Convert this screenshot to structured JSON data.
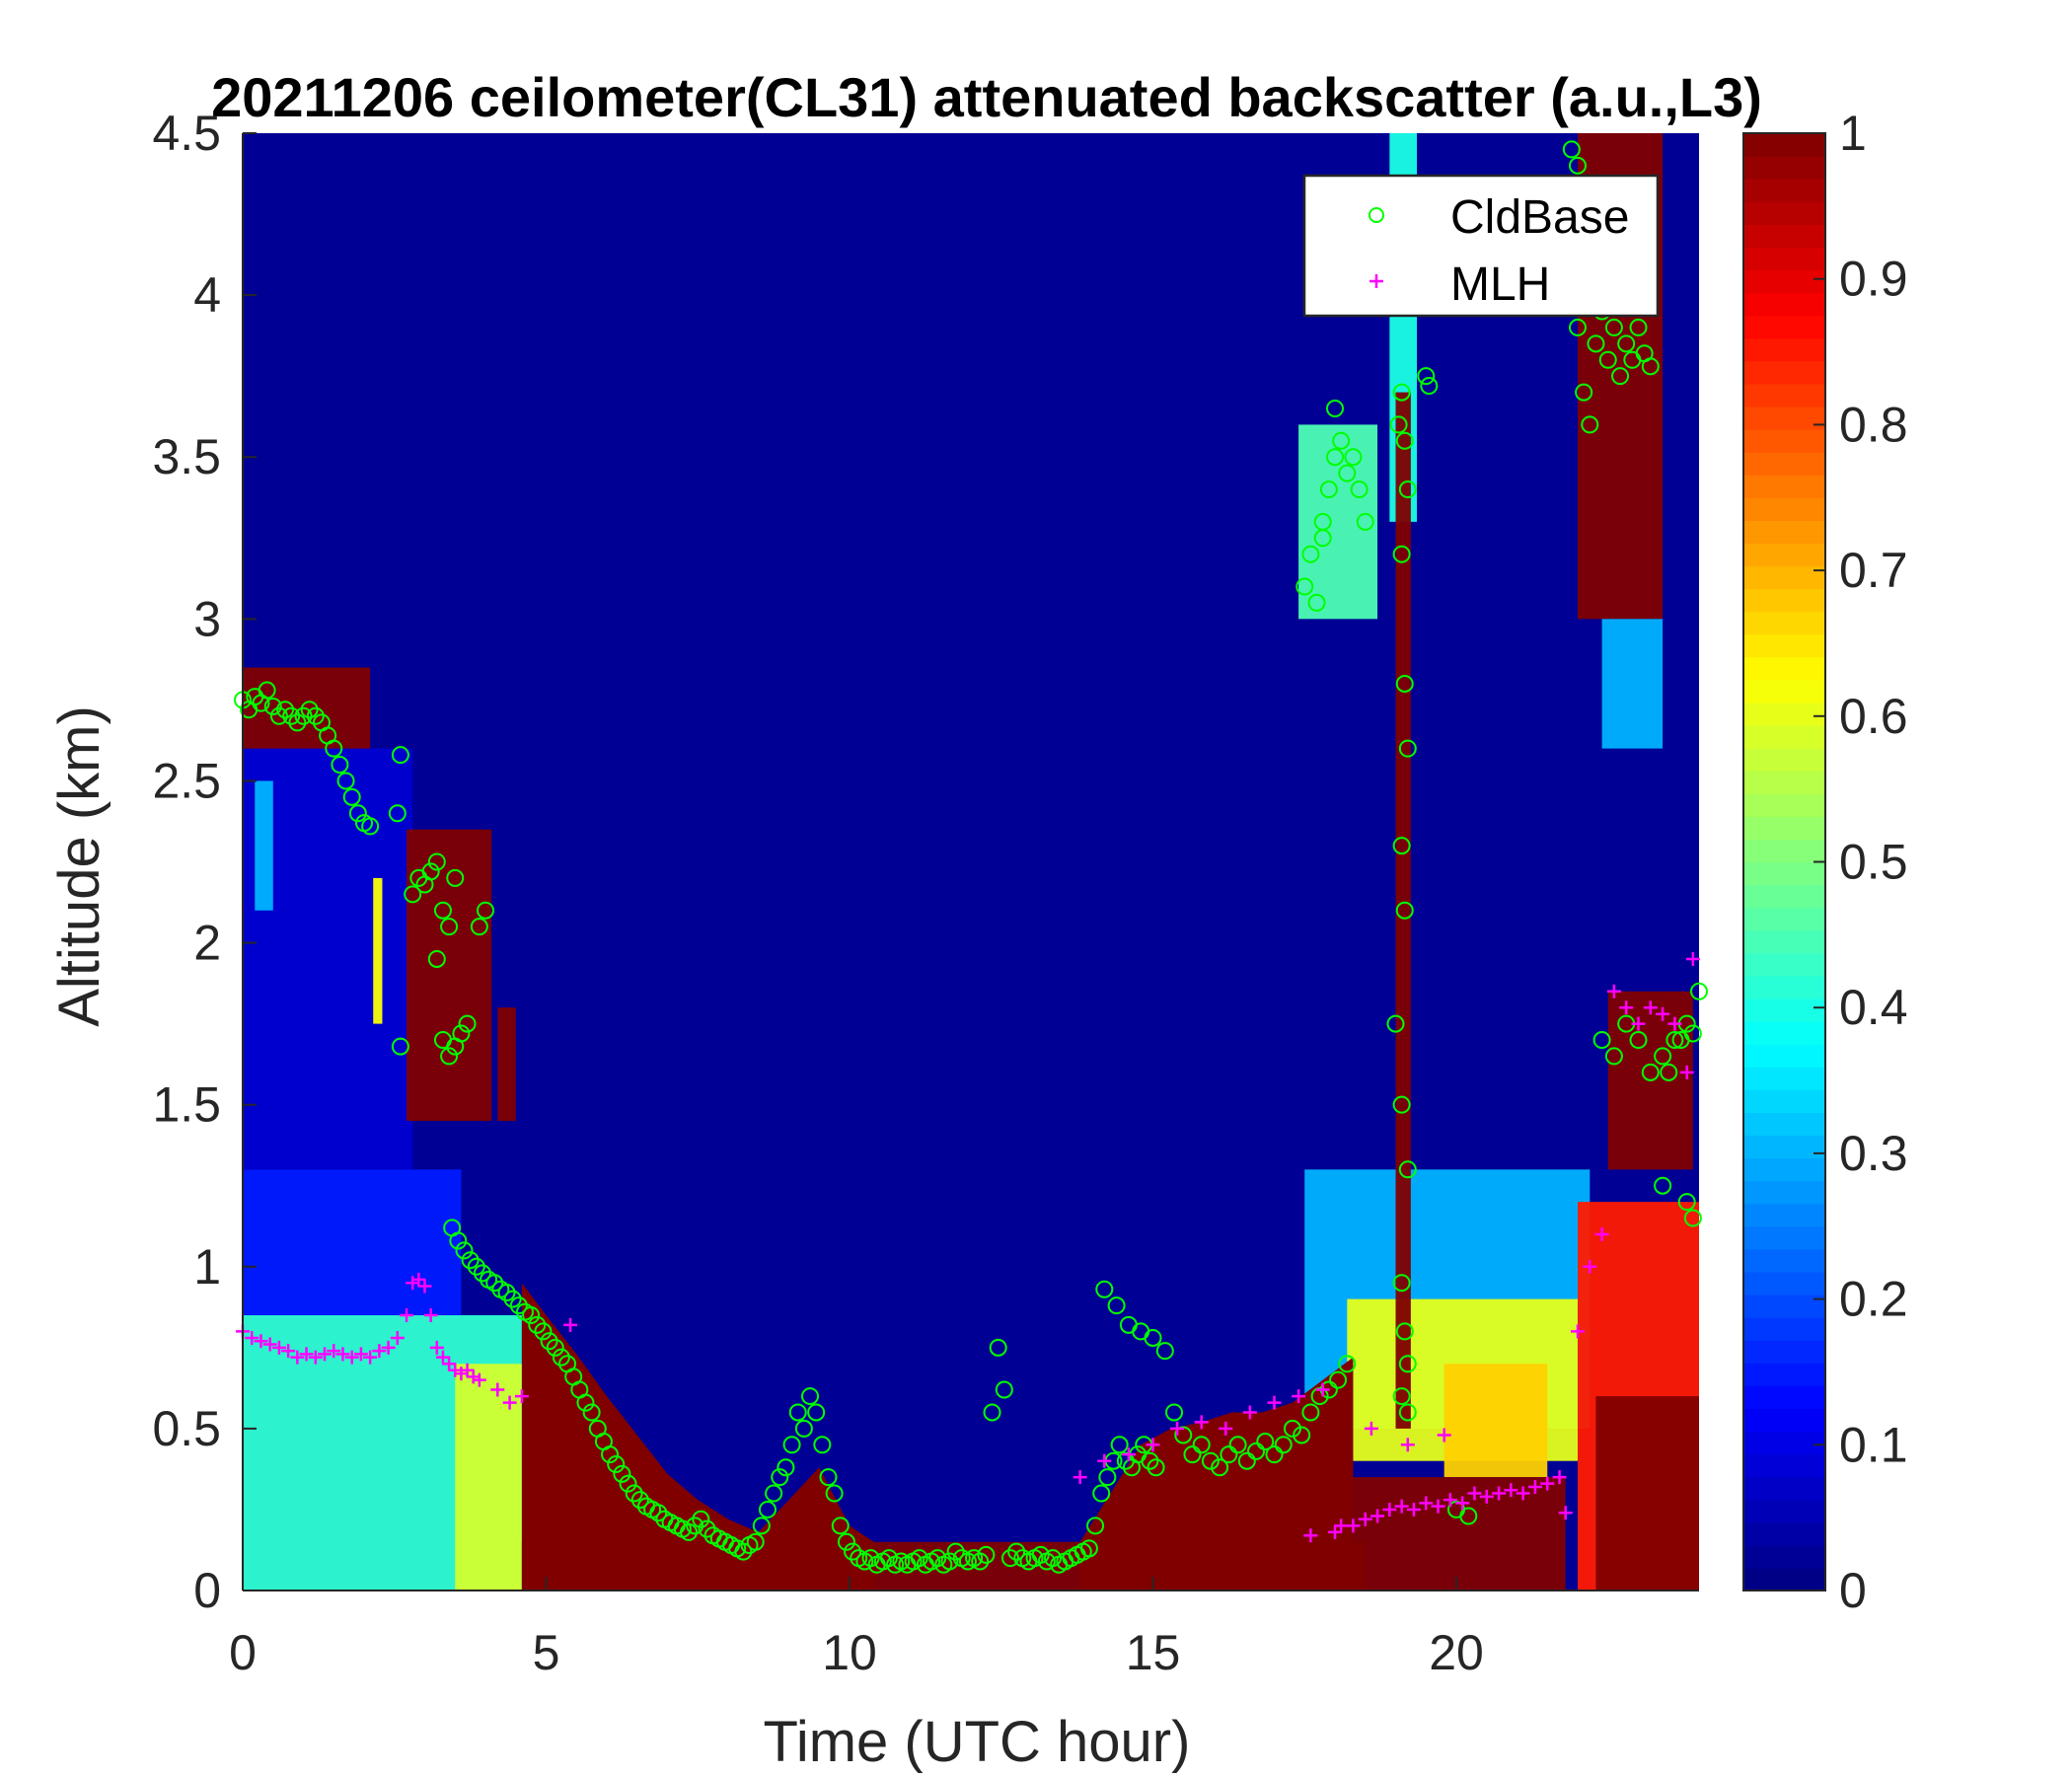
{
  "chart_data": {
    "type": "heatmap",
    "title": "20211206 ceilometer(CL31) attenuated backscatter (a.u.,L3)",
    "xlabel": "Time (UTC hour)",
    "ylabel": "Altitude (km)",
    "xlim": [
      0,
      24
    ],
    "ylim": [
      0,
      4.5
    ],
    "xticks": [
      "0",
      "5",
      "10",
      "15",
      "20"
    ],
    "xtick_values": [
      0,
      5,
      10,
      15,
      20
    ],
    "yticks": [
      "0",
      "0.5",
      "1",
      "1.5",
      "2",
      "2.5",
      "3",
      "3.5",
      "4",
      "4.5"
    ],
    "ytick_values": [
      0,
      0.5,
      1,
      1.5,
      2,
      2.5,
      3,
      3.5,
      4,
      4.5
    ],
    "colorbar": {
      "colormap": "jet",
      "limits": [
        0,
        1
      ],
      "ticks": [
        "0",
        "0.1",
        "0.2",
        "0.3",
        "0.4",
        "0.5",
        "0.6",
        "0.7",
        "0.8",
        "0.9",
        "1"
      ],
      "tick_values": [
        0,
        0.1,
        0.2,
        0.3,
        0.4,
        0.5,
        0.6,
        0.7,
        0.8,
        0.9,
        1
      ]
    },
    "legend": {
      "position": "top-right",
      "entries": [
        {
          "label": "CldBase",
          "marker": "circle",
          "color": "#00ff00"
        },
        {
          "label": "MLH",
          "marker": "plus",
          "color": "#ff00ff"
        }
      ]
    },
    "heatmap_regions": [
      {
        "x": [
          0,
          4.6
        ],
        "y": [
          0,
          0.85
        ],
        "value": 0.42
      },
      {
        "x": [
          3.5,
          4.6
        ],
        "y": [
          0,
          0.7
        ],
        "value": 0.58
      },
      {
        "x": [
          0,
          3.6
        ],
        "y": [
          0.85,
          1.3
        ],
        "value": 0.15
      },
      {
        "x": [
          0,
          2.8
        ],
        "y": [
          1.3,
          2.6
        ],
        "value": 0.08
      },
      {
        "x": [
          0.2,
          0.5
        ],
        "y": [
          2.1,
          2.5
        ],
        "value": 0.3
      },
      {
        "x": [
          2.15,
          2.3
        ],
        "y": [
          1.75,
          2.2
        ],
        "value": 0.62
      },
      {
        "x": [
          0,
          2.1
        ],
        "y": [
          2.6,
          2.85
        ],
        "value": 1.0
      },
      {
        "x": [
          2.7,
          4.1
        ],
        "y": [
          1.45,
          2.35
        ],
        "value": 1.0
      },
      {
        "x": [
          4.2,
          4.5
        ],
        "y": [
          1.45,
          1.8
        ],
        "value": 1.0
      },
      {
        "x": [
          4.6,
          18.5
        ],
        "y": [
          0,
          0.15
        ],
        "value": 1.0
      },
      {
        "x": [
          17.5,
          22.2
        ],
        "y": [
          0.5,
          1.3
        ],
        "value": 0.3
      },
      {
        "x": [
          18.2,
          22
        ],
        "y": [
          0.4,
          0.9
        ],
        "value": 0.6
      },
      {
        "x": [
          19.8,
          21.5
        ],
        "y": [
          0.35,
          0.7
        ],
        "value": 0.67
      },
      {
        "x": [
          18.3,
          21.8
        ],
        "y": [
          0,
          0.35
        ],
        "value": 1.0
      },
      {
        "x": [
          22,
          24
        ],
        "y": [
          0,
          1.2
        ],
        "value": 0.85
      },
      {
        "x": [
          22.3,
          24
        ],
        "y": [
          0,
          0.6
        ],
        "value": 1.0
      },
      {
        "x": [
          22.5,
          23.9
        ],
        "y": [
          1.3,
          1.85
        ],
        "value": 1.0
      },
      {
        "x": [
          22,
          23.4
        ],
        "y": [
          3.0,
          4.5
        ],
        "value": 1.0
      },
      {
        "x": [
          22.4,
          23.4
        ],
        "y": [
          2.6,
          3.0
        ],
        "value": 0.3
      },
      {
        "x": [
          18.9,
          19.35
        ],
        "y": [
          3.3,
          4.5
        ],
        "value": 0.4
      },
      {
        "x": [
          17.4,
          18.7
        ],
        "y": [
          3.0,
          3.6
        ],
        "value": 0.45
      },
      {
        "x": [
          19.0,
          19.25
        ],
        "y": [
          0.5,
          3.7
        ],
        "value": 1.0
      }
    ],
    "heatmap_profiles": [
      {
        "x": [
          4.6,
          5.0,
          5.5,
          6.0,
          6.5,
          7.0,
          7.5,
          8.0,
          8.5,
          9.0,
          9.5,
          10.0,
          10.4
        ],
        "top": [
          0.95,
          0.85,
          0.73,
          0.6,
          0.48,
          0.36,
          0.28,
          0.22,
          0.18,
          0.28,
          0.38,
          0.2,
          0.15
        ],
        "value": 1.0
      },
      {
        "x": [
          13.8,
          14.3,
          14.8,
          15.3,
          15.8,
          16.3,
          16.8,
          17.3,
          17.8,
          18.3
        ],
        "top": [
          0.15,
          0.3,
          0.45,
          0.5,
          0.52,
          0.55,
          0.55,
          0.58,
          0.65,
          0.72
        ],
        "value": 1.0
      }
    ],
    "cloud_base_series": {
      "name": "CldBase",
      "x": [
        0.0,
        0.1,
        0.2,
        0.3,
        0.4,
        0.5,
        0.6,
        0.7,
        0.8,
        0.9,
        1.0,
        1.1,
        1.2,
        1.3,
        1.4,
        1.5,
        1.6,
        1.7,
        1.8,
        1.9,
        2.0,
        2.1,
        2.6,
        2.55,
        2.8,
        2.9,
        3.0,
        3.1,
        3.2,
        3.3,
        3.4,
        3.5,
        3.2,
        3.3,
        3.4,
        3.5,
        3.6,
        3.7,
        3.9,
        4.0,
        3.45,
        3.55,
        3.65,
        3.75,
        3.85,
        3.95,
        4.05,
        4.15,
        4.25,
        4.35,
        4.45,
        4.55,
        4.65,
        4.75,
        4.85,
        4.95,
        5.05,
        5.15,
        5.25,
        5.35,
        5.45,
        5.55,
        5.65,
        5.75,
        5.85,
        5.95,
        6.05,
        6.15,
        6.25,
        6.35,
        6.45,
        6.55,
        6.65,
        6.75,
        6.85,
        6.95,
        7.05,
        7.15,
        7.25,
        7.35,
        7.45,
        7.55,
        7.65,
        7.75,
        7.85,
        7.95,
        8.05,
        8.15,
        8.25,
        8.35,
        8.45,
        8.55,
        8.65,
        8.75,
        8.85,
        8.95,
        9.05,
        9.15,
        9.25,
        9.35,
        9.45,
        9.55,
        9.65,
        9.75,
        9.85,
        9.95,
        10.05,
        10.15,
        10.25,
        10.35,
        10.45,
        10.55,
        10.65,
        10.75,
        10.85,
        10.95,
        11.05,
        11.15,
        11.25,
        11.35,
        11.45,
        11.55,
        11.65,
        11.75,
        11.85,
        11.95,
        12.05,
        12.15,
        12.25,
        12.35,
        12.45,
        12.55,
        12.65,
        12.75,
        12.85,
        12.95,
        13.05,
        13.15,
        13.25,
        13.35,
        13.45,
        13.55,
        13.65,
        13.75,
        13.85,
        13.95,
        14.05,
        14.15,
        14.25,
        14.35,
        14.45,
        14.55,
        14.65,
        14.75,
        14.85,
        14.95,
        15.05,
        14.2,
        14.4,
        14.6,
        14.8,
        15.0,
        15.2,
        15.35,
        15.5,
        15.65,
        15.8,
        15.95,
        16.1,
        16.25,
        16.4,
        16.55,
        16.7,
        16.85,
        17.0,
        17.15,
        17.3,
        17.45,
        17.6,
        17.75,
        17.9,
        18.05,
        18.2,
        17.5,
        17.6,
        17.7,
        17.8,
        17.9,
        18.0,
        18.1,
        18.2,
        18.3,
        18.4,
        18.5,
        17.8,
        18.0,
        19.05,
        19.1,
        19.15,
        19.2,
        19.1,
        19.15,
        19.2,
        19.1,
        19.15,
        19.0,
        19.1,
        19.2,
        19.1,
        19.15,
        19.2,
        19.1,
        19.2,
        19.5,
        19.55,
        20.0,
        20.2,
        22.0,
        22.1,
        22.2,
        22.3,
        22.4,
        22.5,
        22.6,
        22.7,
        22.8,
        22.9,
        23.0,
        23.1,
        23.2,
        21.9,
        22.0,
        22.4,
        22.6,
        22.8,
        23.0,
        23.2,
        23.4,
        23.6,
        23.8,
        23.9,
        24.0,
        23.7,
        23.5,
        23.4,
        23.8,
        23.9,
        2.6
      ],
      "y": [
        2.75,
        2.72,
        2.76,
        2.74,
        2.78,
        2.73,
        2.7,
        2.72,
        2.7,
        2.68,
        2.7,
        2.72,
        2.7,
        2.68,
        2.64,
        2.6,
        2.55,
        2.5,
        2.45,
        2.4,
        2.37,
        2.36,
        2.58,
        2.4,
        2.15,
        2.2,
        2.18,
        2.22,
        2.25,
        2.1,
        2.05,
        2.2,
        1.95,
        1.7,
        1.65,
        1.68,
        1.72,
        1.75,
        2.05,
        2.1,
        1.12,
        1.08,
        1.05,
        1.02,
        1.0,
        0.98,
        0.96,
        0.95,
        0.93,
        0.92,
        0.9,
        0.88,
        0.86,
        0.85,
        0.82,
        0.8,
        0.77,
        0.75,
        0.72,
        0.7,
        0.66,
        0.62,
        0.58,
        0.55,
        0.5,
        0.46,
        0.42,
        0.39,
        0.36,
        0.33,
        0.3,
        0.28,
        0.26,
        0.25,
        0.24,
        0.22,
        0.21,
        0.2,
        0.19,
        0.18,
        0.2,
        0.22,
        0.19,
        0.17,
        0.16,
        0.15,
        0.14,
        0.13,
        0.12,
        0.14,
        0.15,
        0.2,
        0.25,
        0.3,
        0.35,
        0.38,
        0.45,
        0.55,
        0.5,
        0.6,
        0.55,
        0.45,
        0.35,
        0.3,
        0.2,
        0.15,
        0.12,
        0.1,
        0.09,
        0.1,
        0.08,
        0.09,
        0.1,
        0.08,
        0.09,
        0.08,
        0.09,
        0.1,
        0.08,
        0.09,
        0.1,
        0.08,
        0.09,
        0.12,
        0.1,
        0.09,
        0.1,
        0.09,
        0.11,
        0.55,
        0.75,
        0.62,
        0.1,
        0.12,
        0.1,
        0.09,
        0.1,
        0.11,
        0.09,
        0.1,
        0.08,
        0.09,
        0.1,
        0.11,
        0.12,
        0.13,
        0.2,
        0.3,
        0.35,
        0.4,
        0.45,
        0.4,
        0.38,
        0.42,
        0.45,
        0.4,
        0.38,
        0.93,
        0.88,
        0.82,
        0.8,
        0.78,
        0.74,
        0.55,
        0.48,
        0.42,
        0.45,
        0.4,
        0.38,
        0.42,
        0.45,
        0.4,
        0.43,
        0.46,
        0.42,
        0.45,
        0.5,
        0.48,
        0.55,
        0.6,
        0.62,
        0.65,
        0.7,
        3.1,
        3.2,
        3.05,
        3.3,
        3.4,
        3.5,
        3.55,
        3.45,
        3.5,
        3.4,
        3.3,
        3.25,
        3.65,
        3.6,
        3.7,
        3.55,
        3.4,
        3.2,
        2.8,
        2.6,
        2.3,
        2.1,
        1.75,
        1.5,
        1.3,
        0.95,
        0.8,
        0.7,
        0.6,
        0.55,
        3.75,
        3.72,
        0.25,
        0.23,
        3.9,
        3.7,
        3.6,
        3.85,
        3.95,
        3.8,
        3.9,
        3.75,
        3.85,
        3.8,
        3.9,
        3.82,
        3.78,
        4.45,
        4.4,
        1.7,
        1.65,
        1.75,
        1.7,
        1.6,
        1.65,
        1.7,
        1.75,
        1.72,
        1.85,
        1.7,
        1.6,
        1.25,
        1.2,
        1.15,
        1.68,
        1.9,
        4.5
      ]
    },
    "mlh_series": {
      "name": "MLH",
      "x": [
        0.0,
        0.15,
        0.3,
        0.45,
        0.6,
        0.75,
        0.9,
        1.05,
        1.2,
        1.35,
        1.5,
        1.65,
        1.8,
        1.95,
        2.1,
        2.25,
        2.4,
        2.55,
        2.7,
        2.8,
        2.9,
        3.0,
        3.1,
        3.2,
        3.3,
        3.4,
        3.5,
        3.6,
        3.7,
        3.8,
        3.9,
        4.2,
        4.4,
        4.6,
        5.4,
        13.8,
        14.2,
        14.6,
        15.0,
        15.4,
        15.8,
        16.2,
        16.6,
        17.0,
        17.4,
        17.8,
        18.1,
        18.3,
        18.5,
        18.7,
        18.9,
        19.1,
        19.3,
        19.5,
        19.7,
        19.9,
        20.1,
        20.3,
        20.5,
        20.7,
        20.9,
        21.1,
        21.3,
        21.5,
        21.7,
        21.8,
        22.0,
        22.2,
        22.4,
        22.6,
        22.8,
        23.0,
        23.2,
        23.4,
        23.6,
        23.8,
        23.9,
        17.6,
        18.0,
        18.6,
        19.2,
        19.8
      ],
      "y": [
        0.8,
        0.78,
        0.77,
        0.76,
        0.75,
        0.74,
        0.72,
        0.73,
        0.72,
        0.73,
        0.74,
        0.73,
        0.72,
        0.73,
        0.72,
        0.74,
        0.75,
        0.78,
        0.85,
        0.95,
        0.96,
        0.94,
        0.85,
        0.75,
        0.72,
        0.7,
        0.68,
        0.67,
        0.68,
        0.66,
        0.65,
        0.62,
        0.58,
        0.6,
        0.82,
        0.35,
        0.4,
        0.42,
        0.45,
        0.5,
        0.52,
        0.5,
        0.55,
        0.58,
        0.6,
        0.62,
        0.2,
        0.2,
        0.22,
        0.23,
        0.25,
        0.26,
        0.25,
        0.27,
        0.26,
        0.28,
        0.27,
        0.3,
        0.29,
        0.3,
        0.31,
        0.3,
        0.32,
        0.33,
        0.35,
        0.24,
        0.8,
        1.0,
        1.1,
        1.85,
        1.8,
        1.75,
        1.8,
        1.78,
        1.75,
        1.6,
        1.95,
        0.17,
        0.18,
        0.5,
        0.45,
        0.48
      ]
    }
  }
}
